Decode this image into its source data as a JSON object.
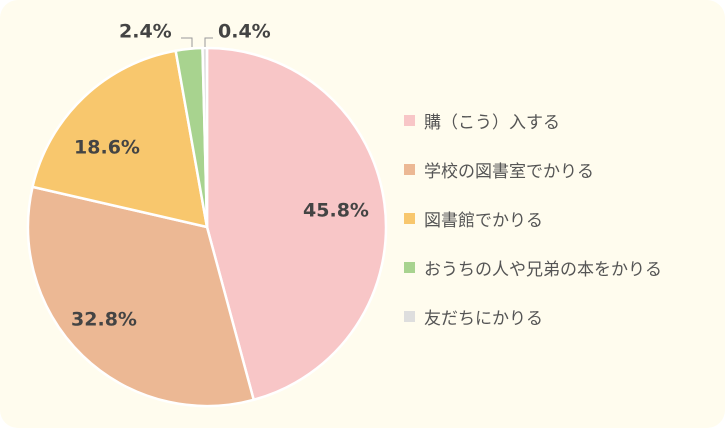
{
  "chart_data": {
    "type": "pie",
    "title": "",
    "slices": [
      {
        "label": "購（こう）入する",
        "value": 45.8,
        "display": "45.8%",
        "color": "#f8c6c7"
      },
      {
        "label": "学校の図書室でかりる",
        "value": 32.8,
        "display": "32.8%",
        "color": "#ecb894"
      },
      {
        "label": "図書館でかりる",
        "value": 18.6,
        "display": "18.6%",
        "color": "#f8c76d"
      },
      {
        "label": "おうちの人や兄弟の本をかりる",
        "value": 2.4,
        "display": "2.4%",
        "color": "#a8d38f"
      },
      {
        "label": "友だちにかりる",
        "value": 0.4,
        "display": "0.4%",
        "color": "#dedede"
      }
    ],
    "legend_position": "right",
    "start_angle": "top",
    "direction": "clockwise"
  }
}
